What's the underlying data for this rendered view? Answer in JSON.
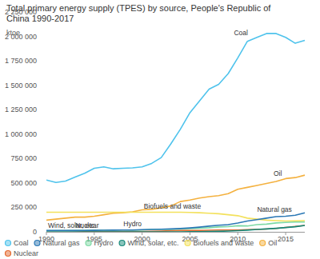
{
  "chart_data": {
    "type": "line",
    "title": "Total primary energy supply (TPES) by source, People's Republic of China 1990-2017",
    "y_label": "ktoe",
    "x": [
      1990,
      1991,
      1992,
      1993,
      1994,
      1995,
      1996,
      1997,
      1998,
      1999,
      2000,
      2001,
      2002,
      2003,
      2004,
      2005,
      2006,
      2007,
      2008,
      2009,
      2010,
      2011,
      2012,
      2013,
      2014,
      2015,
      2016,
      2017
    ],
    "xlim": [
      1990,
      2017
    ],
    "xticks": [
      1990,
      1995,
      2000,
      2005,
      2010,
      2015
    ],
    "ylim": [
      0,
      2250000
    ],
    "yticks": [
      0,
      {
        "value": 250000,
        "label": "250 000"
      },
      {
        "value": 500000,
        "label": "500 000"
      },
      {
        "value": 750000,
        "label": "750 000"
      },
      {
        "value": 1000000,
        "label": "1 000 000"
      },
      {
        "value": 1250000,
        "label": "1 250 000"
      },
      {
        "value": 1500000,
        "label": "1 500 000"
      },
      {
        "value": 1750000,
        "label": "1 750 000"
      },
      {
        "value": 2000000,
        "label": "2 000 000"
      },
      {
        "value": 2250000,
        "label": "2 250 000"
      }
    ],
    "grid": false,
    "legend": "bottom",
    "series": [
      {
        "name": "Coal",
        "color": "#4fc3ec",
        "values": [
          530000,
          505000,
          520000,
          560000,
          600000,
          650000,
          665000,
          645000,
          650000,
          655000,
          665000,
          700000,
          760000,
          900000,
          1050000,
          1220000,
          1340000,
          1460000,
          1510000,
          1620000,
          1780000,
          1950000,
          1990000,
          2030000,
          2030000,
          1990000,
          1930000,
          1960000
        ]
      },
      {
        "name": "Natural gas",
        "color": "#2b78b5",
        "values": [
          13000,
          13000,
          13000,
          13000,
          14000,
          15000,
          16000,
          17000,
          18000,
          19000,
          22000,
          25000,
          27000,
          30000,
          34000,
          40000,
          48000,
          58000,
          67000,
          73000,
          90000,
          110000,
          125000,
          140000,
          155000,
          160000,
          170000,
          195000
        ]
      },
      {
        "name": "Hydro",
        "color": "#7dd9a4",
        "values": [
          11000,
          11000,
          11000,
          13000,
          14000,
          16000,
          16000,
          17000,
          18000,
          17000,
          19000,
          24000,
          25000,
          24000,
          30000,
          34000,
          37000,
          42000,
          50000,
          53000,
          62000,
          60000,
          74000,
          79000,
          91000,
          96000,
          100000,
          100000
        ]
      },
      {
        "name": "Wind, solar, etc.",
        "color": "#16897a",
        "values": [
          0,
          0,
          0,
          0,
          0,
          0,
          0,
          0,
          0,
          0,
          0,
          0,
          0,
          0,
          0,
          1000,
          2000,
          3000,
          5000,
          8000,
          12000,
          17000,
          24000,
          30000,
          36000,
          44000,
          52000,
          66000
        ]
      },
      {
        "name": "Biofuels and waste",
        "color": "#f3e15c",
        "values": [
          200000,
          201000,
          200000,
          200000,
          200000,
          200000,
          200000,
          200000,
          200000,
          200000,
          200000,
          200000,
          200000,
          200000,
          200000,
          198000,
          195000,
          190000,
          185000,
          175000,
          165000,
          140000,
          130000,
          120000,
          115000,
          110000,
          112000,
          115000
        ]
      },
      {
        "name": "Oil",
        "color": "#f4b13f",
        "values": [
          120000,
          130000,
          140000,
          150000,
          150000,
          160000,
          175000,
          190000,
          195000,
          205000,
          225000,
          230000,
          245000,
          265000,
          310000,
          325000,
          345000,
          360000,
          370000,
          390000,
          435000,
          455000,
          475000,
          495000,
          515000,
          545000,
          555000,
          580000
        ]
      },
      {
        "name": "Nuclear",
        "color": "#e4692e",
        "values": [
          0,
          0,
          0,
          0,
          4000,
          3000,
          4000,
          4000,
          4000,
          4000,
          4000,
          5000,
          7000,
          11000,
          13000,
          14000,
          14000,
          16000,
          18000,
          18000,
          19000,
          23000,
          25000,
          29000,
          35000,
          45000,
          55000,
          65000
        ]
      }
    ]
  }
}
